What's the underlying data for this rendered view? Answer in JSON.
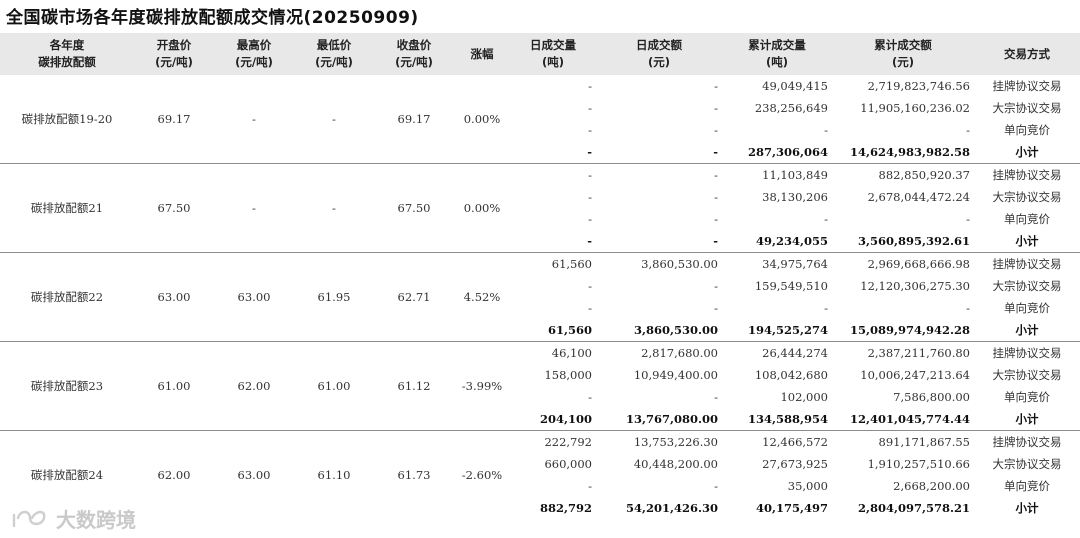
{
  "title": "全国碳市场各年度碳排放配额成交情况(20250909)",
  "headers": [
    {
      "l1": "各年度",
      "l2": "碳排放配额"
    },
    {
      "l1": "开盘价",
      "l2": "(元/吨)"
    },
    {
      "l1": "最高价",
      "l2": "(元/吨)"
    },
    {
      "l1": "最低价",
      "l2": "(元/吨)"
    },
    {
      "l1": "收盘价",
      "l2": "(元/吨)"
    },
    {
      "l1": "涨幅",
      "l2": ""
    },
    {
      "l1": "日成交量",
      "l2": "(吨)"
    },
    {
      "l1": "日成交额",
      "l2": "(元)"
    },
    {
      "l1": "累计成交量",
      "l2": "(吨)"
    },
    {
      "l1": "累计成交额",
      "l2": "(元)"
    },
    {
      "l1": "交易方式",
      "l2": ""
    }
  ],
  "groups": [
    {
      "name": "碳排放配额19-20",
      "open": "69.17",
      "high": "-",
      "low": "-",
      "close": "69.17",
      "change": "0.00%",
      "rows": [
        {
          "dv": "-",
          "da": "-",
          "cv": "49,049,415",
          "ca": "2,719,823,746.56",
          "mode": "挂牌协议交易"
        },
        {
          "dv": "-",
          "da": "-",
          "cv": "238,256,649",
          "ca": "11,905,160,236.02",
          "mode": "大宗协议交易"
        },
        {
          "dv": "-",
          "da": "-",
          "cv": "-",
          "ca": "-",
          "mode": "单向竞价"
        },
        {
          "dv": "-",
          "da": "-",
          "cv": "287,306,064",
          "ca": "14,624,983,982.58",
          "mode": "小计"
        }
      ]
    },
    {
      "name": "碳排放配额21",
      "open": "67.50",
      "high": "-",
      "low": "-",
      "close": "67.50",
      "change": "0.00%",
      "rows": [
        {
          "dv": "-",
          "da": "-",
          "cv": "11,103,849",
          "ca": "882,850,920.37",
          "mode": "挂牌协议交易"
        },
        {
          "dv": "-",
          "da": "-",
          "cv": "38,130,206",
          "ca": "2,678,044,472.24",
          "mode": "大宗协议交易"
        },
        {
          "dv": "-",
          "da": "-",
          "cv": "-",
          "ca": "-",
          "mode": "单向竞价"
        },
        {
          "dv": "-",
          "da": "-",
          "cv": "49,234,055",
          "ca": "3,560,895,392.61",
          "mode": "小计"
        }
      ]
    },
    {
      "name": "碳排放配额22",
      "open": "63.00",
      "high": "63.00",
      "low": "61.95",
      "close": "62.71",
      "change": "4.52%",
      "rows": [
        {
          "dv": "61,560",
          "da": "3,860,530.00",
          "cv": "34,975,764",
          "ca": "2,969,668,666.98",
          "mode": "挂牌协议交易"
        },
        {
          "dv": "-",
          "da": "-",
          "cv": "159,549,510",
          "ca": "12,120,306,275.30",
          "mode": "大宗协议交易"
        },
        {
          "dv": "-",
          "da": "-",
          "cv": "-",
          "ca": "-",
          "mode": "单向竞价"
        },
        {
          "dv": "61,560",
          "da": "3,860,530.00",
          "cv": "194,525,274",
          "ca": "15,089,974,942.28",
          "mode": "小计"
        }
      ]
    },
    {
      "name": "碳排放配额23",
      "open": "61.00",
      "high": "62.00",
      "low": "61.00",
      "close": "61.12",
      "change": "-3.99%",
      "rows": [
        {
          "dv": "46,100",
          "da": "2,817,680.00",
          "cv": "26,444,274",
          "ca": "2,387,211,760.80",
          "mode": "挂牌协议交易"
        },
        {
          "dv": "158,000",
          "da": "10,949,400.00",
          "cv": "108,042,680",
          "ca": "10,006,247,213.64",
          "mode": "大宗协议交易"
        },
        {
          "dv": "-",
          "da": "-",
          "cv": "102,000",
          "ca": "7,586,800.00",
          "mode": "单向竞价"
        },
        {
          "dv": "204,100",
          "da": "13,767,080.00",
          "cv": "134,588,954",
          "ca": "12,401,045,774.44",
          "mode": "小计"
        }
      ]
    },
    {
      "name": "碳排放配额24",
      "open": "62.00",
      "high": "63.00",
      "low": "61.10",
      "close": "61.73",
      "change": "-2.60%",
      "rows": [
        {
          "dv": "222,792",
          "da": "13,753,226.30",
          "cv": "12,466,572",
          "ca": "891,171,867.55",
          "mode": "挂牌协议交易"
        },
        {
          "dv": "660,000",
          "da": "40,448,200.00",
          "cv": "27,673,925",
          "ca": "1,910,257,510.66",
          "mode": "大宗协议交易"
        },
        {
          "dv": "-",
          "da": "-",
          "cv": "35,000",
          "ca": "2,668,200.00",
          "mode": "单向竞价"
        },
        {
          "dv": "882,792",
          "da": "54,201,426.30",
          "cv": "40,175,497",
          "ca": "2,804,097,578.21",
          "mode": "小计"
        }
      ]
    }
  ],
  "watermark": {
    "text": "大数跨境",
    "icon": "infinity-logo-icon"
  }
}
